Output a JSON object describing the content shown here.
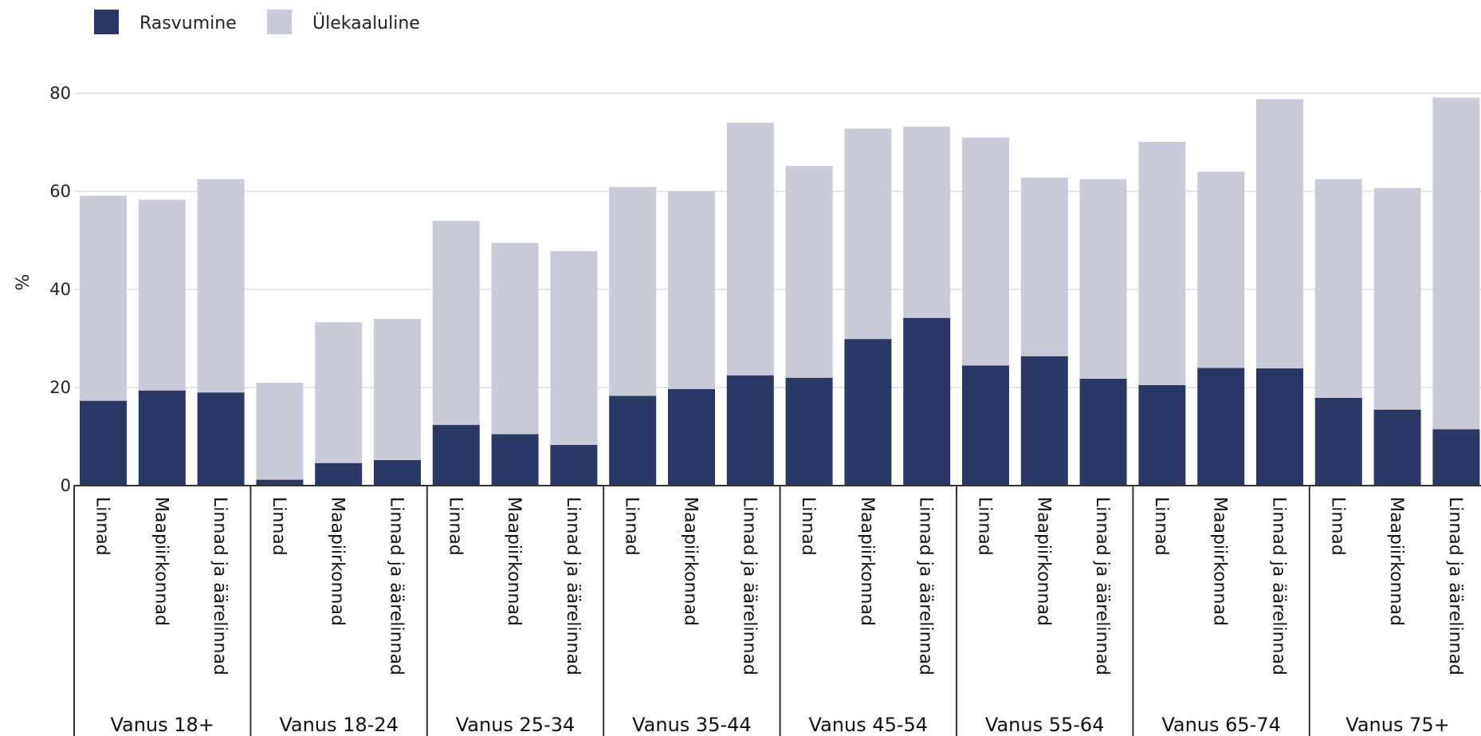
{
  "colors": {
    "obesity": "#2b3764",
    "overweight": "#c9cbd8",
    "grid": "#e6e6e6",
    "axis": "#333333"
  },
  "chart_data": {
    "type": "bar",
    "stacked": true,
    "title": "",
    "xlabel": "",
    "ylabel": "%",
    "ylim": [
      0,
      80
    ],
    "yticks": [
      0,
      20,
      40,
      60,
      80
    ],
    "grid": true,
    "legend_position": "top-left",
    "subcategories": [
      "Linnad",
      "Maapiirkonnad",
      "Linnad ja äärelinnad"
    ],
    "groups": [
      "Vanus 18+",
      "Vanus 18-24",
      "Vanus 25-34",
      "Vanus 35-44",
      "Vanus 45-54",
      "Vanus 55-64",
      "Vanus 65-74",
      "Vanus 75+"
    ],
    "series": [
      {
        "name": "Rasvumine",
        "color": "#2b3764",
        "values": [
          17.3,
          19.4,
          19.0,
          1.2,
          4.6,
          5.2,
          12.4,
          10.5,
          8.3,
          18.3,
          19.7,
          22.5,
          22.0,
          29.9,
          34.2,
          24.5,
          26.4,
          21.8,
          20.5,
          24.0,
          23.9,
          17.9,
          15.5,
          11.5
        ]
      },
      {
        "name": "Ülekaaluline",
        "color": "#c9cbd8",
        "values": [
          41.8,
          38.9,
          43.5,
          19.8,
          28.7,
          28.8,
          41.6,
          39.0,
          39.5,
          42.6,
          40.3,
          51.5,
          43.2,
          42.9,
          39.0,
          46.5,
          36.4,
          40.7,
          49.6,
          40.0,
          54.9,
          44.6,
          45.2,
          67.6
        ]
      }
    ]
  }
}
